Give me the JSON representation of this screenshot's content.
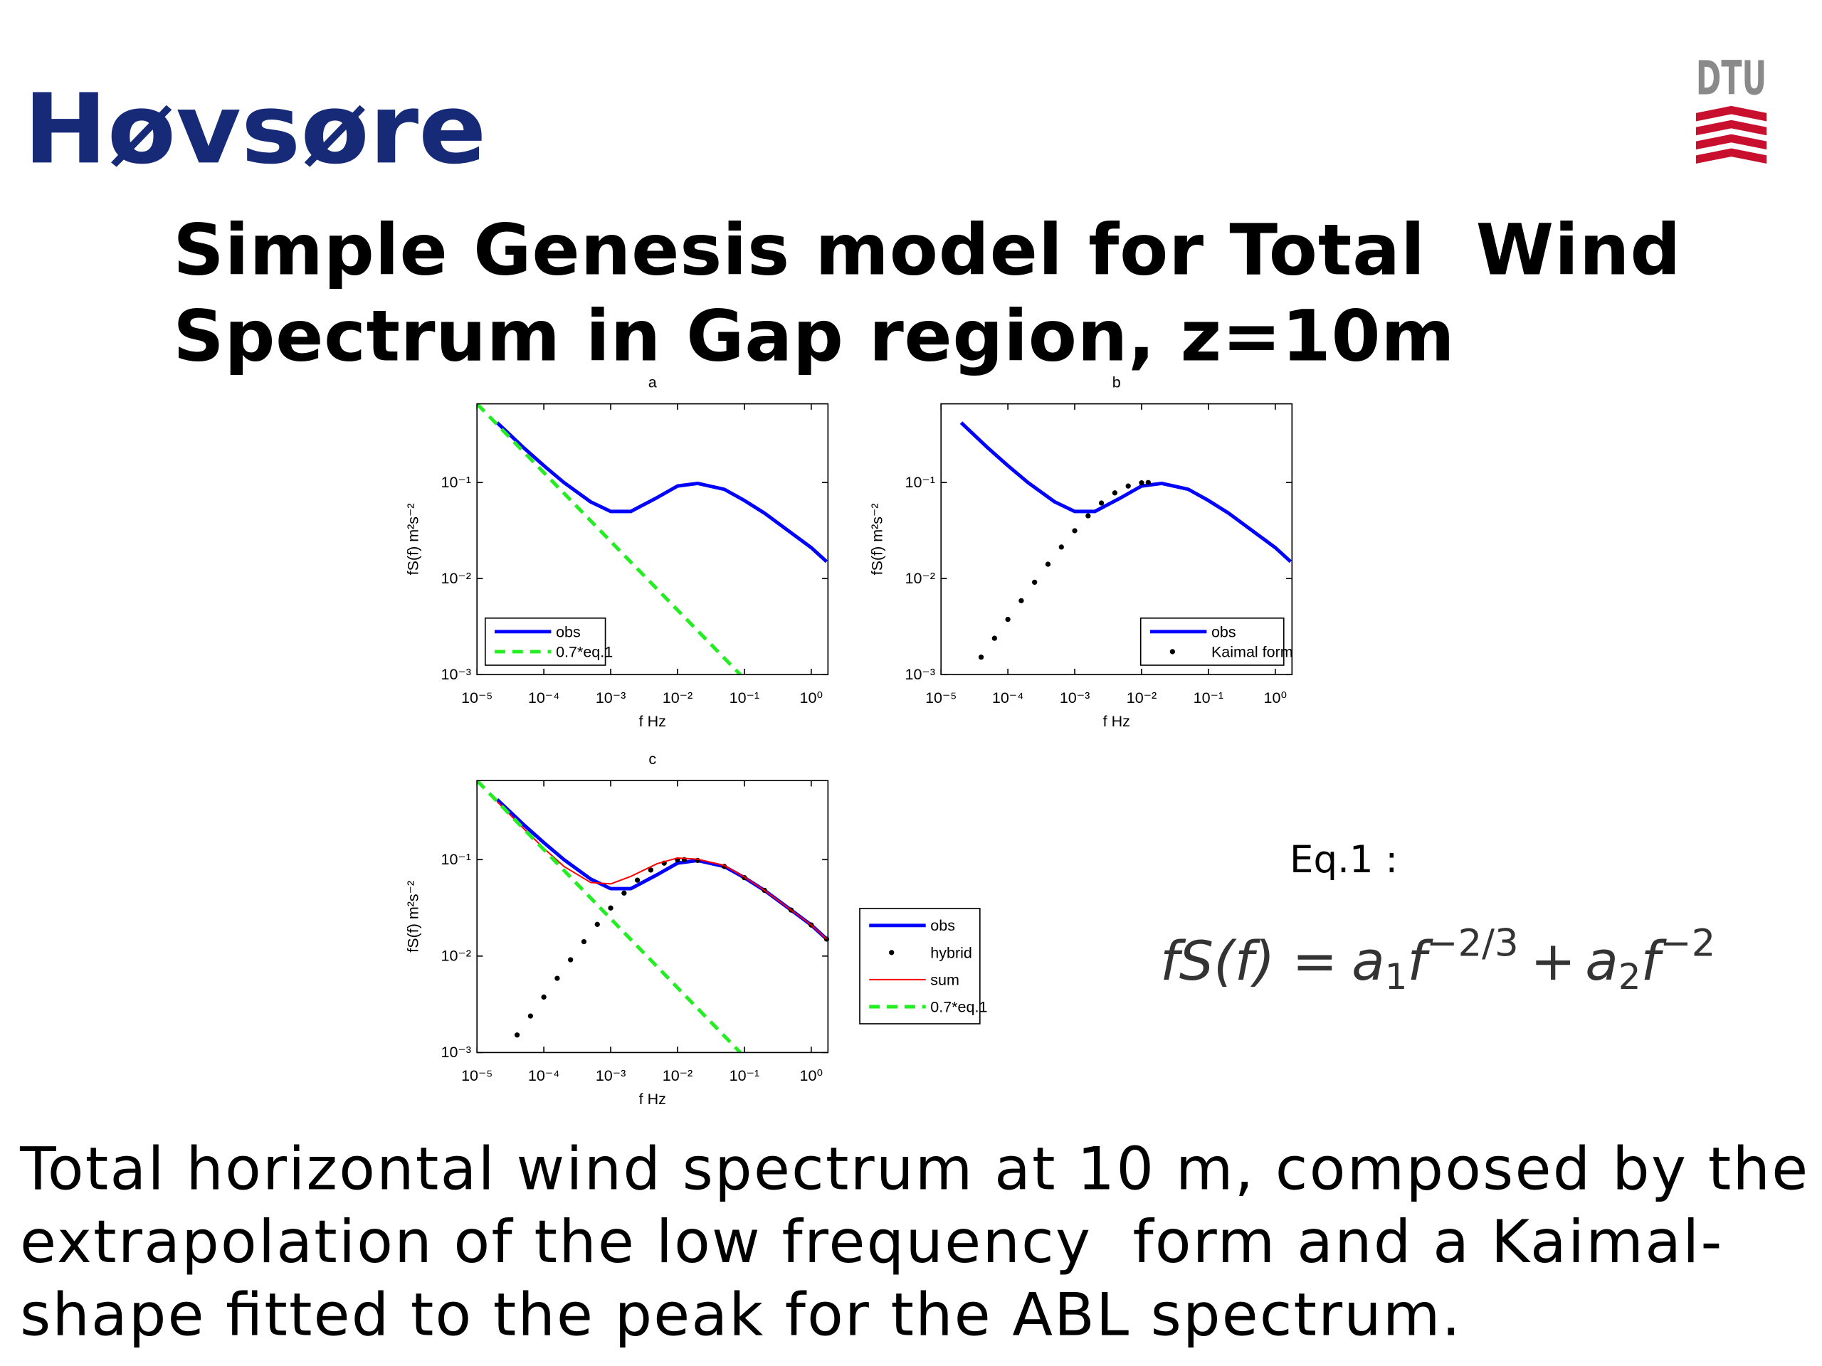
{
  "header": "Høvsøre",
  "logo": "DTU",
  "title": [
    "Simple Genesis model for Total  Wind",
    "Spectrum in Gap region, z=10m"
  ],
  "equation_label": "Eq.1 :",
  "equation": {
    "lhs": "fS(f) =",
    "terms": [
      {
        "coef": "a",
        "sub": "1",
        "var": "f",
        "exp": "−2/3"
      },
      {
        "op": "+",
        "coef": "a",
        "sub": "2",
        "var": "f",
        "exp": "−2"
      }
    ]
  },
  "caption": [
    "Total horizontal wind spectrum at 10 m, composed by the",
    "extrapolation of the low frequency  form and a Kaimal-",
    "shape fitted to the peak for the ABL spectrum."
  ],
  "chart_data": [
    {
      "type": "line",
      "title": "a",
      "xlabel": "f Hz",
      "ylabel": "fS(f) m²s⁻²",
      "xscale": "log",
      "yscale": "log",
      "xlim": [
        1e-05,
        1.78
      ],
      "ylim": [
        0.001,
        0.66
      ],
      "xticks": [
        {
          "value": 1e-05,
          "label": "10⁻⁵"
        },
        {
          "value": 0.0001,
          "label": "10⁻⁴"
        },
        {
          "value": 0.001,
          "label": "10⁻³"
        },
        {
          "value": 0.01,
          "label": "10⁻²"
        },
        {
          "value": 0.1,
          "label": "10⁻¹"
        },
        {
          "value": 1,
          "label": "10⁰"
        }
      ],
      "yticks": [
        {
          "value": 0.001,
          "label": "10⁻³"
        },
        {
          "value": 0.01,
          "label": "10⁻²"
        },
        {
          "value": 0.1,
          "label": "10⁻¹"
        }
      ],
      "legend": "lower left",
      "series": [
        {
          "name": "obs",
          "color": "#0000ff",
          "style": "solid",
          "x": [
            2e-05,
            5e-05,
            0.0001,
            0.0002,
            0.0005,
            0.001,
            0.002,
            0.005,
            0.01,
            0.02,
            0.05,
            0.1,
            0.2,
            0.5,
            1,
            1.7
          ],
          "values": [
            0.42,
            0.23,
            0.15,
            0.1,
            0.063,
            0.05,
            0.05,
            0.07,
            0.092,
            0.098,
            0.085,
            0.065,
            0.048,
            0.03,
            0.021,
            0.015
          ]
        },
        {
          "name": "0.7*eq.1",
          "color": "#22ee22",
          "style": "dashed",
          "x": [
            1e-05,
            0.0001,
            0.001,
            0.01,
            0.087
          ],
          "values": [
            0.66,
            0.127,
            0.0244,
            0.0047,
            0.001
          ]
        }
      ]
    },
    {
      "type": "line",
      "title": "b",
      "xlabel": "f Hz",
      "ylabel": "fS(f) m²s⁻²",
      "xscale": "log",
      "yscale": "log",
      "xlim": [
        1e-05,
        1.78
      ],
      "ylim": [
        0.001,
        0.66
      ],
      "xticks": [
        {
          "value": 1e-05,
          "label": "10⁻⁵"
        },
        {
          "value": 0.0001,
          "label": "10⁻⁴"
        },
        {
          "value": 0.001,
          "label": "10⁻³"
        },
        {
          "value": 0.01,
          "label": "10⁻²"
        },
        {
          "value": 0.1,
          "label": "10⁻¹"
        },
        {
          "value": 1,
          "label": "10⁰"
        }
      ],
      "yticks": [
        {
          "value": 0.001,
          "label": "10⁻³"
        },
        {
          "value": 0.01,
          "label": "10⁻²"
        },
        {
          "value": 0.1,
          "label": "10⁻¹"
        }
      ],
      "legend": "lower right",
      "series": [
        {
          "name": "obs",
          "color": "#0000ff",
          "style": "solid",
          "x": [
            2e-05,
            5e-05,
            0.0001,
            0.0002,
            0.0005,
            0.001,
            0.002,
            0.005,
            0.01,
            0.02,
            0.05,
            0.1,
            0.2,
            0.5,
            1,
            1.7
          ],
          "values": [
            0.42,
            0.23,
            0.15,
            0.1,
            0.063,
            0.05,
            0.05,
            0.07,
            0.092,
            0.098,
            0.085,
            0.065,
            0.048,
            0.03,
            0.021,
            0.015
          ]
        },
        {
          "name": "Kaimal form",
          "color": "#000000",
          "style": "dots",
          "x": [
            3.98e-05,
            6.31e-05,
            0.0001,
            0.0001585,
            0.000251,
            0.000398,
            0.000631,
            0.001,
            0.001585,
            0.00251,
            0.00398,
            0.00631,
            0.01,
            0.0126
          ],
          "values": [
            0.00152,
            0.00239,
            0.00376,
            0.00588,
            0.00916,
            0.0141,
            0.0213,
            0.0315,
            0.045,
            0.0612,
            0.078,
            0.0919,
            0.0993,
            0.1
          ]
        }
      ]
    },
    {
      "type": "line",
      "title": "c",
      "xlabel": "f Hz",
      "ylabel": "fS(f) m²s⁻²",
      "xscale": "log",
      "yscale": "log",
      "xlim": [
        1e-05,
        1.78
      ],
      "ylim": [
        0.001,
        0.66
      ],
      "xticks": [
        {
          "value": 1e-05,
          "label": "10⁻⁵"
        },
        {
          "value": 0.0001,
          "label": "10⁻⁴"
        },
        {
          "value": 0.001,
          "label": "10⁻³"
        },
        {
          "value": 0.01,
          "label": "10⁻²"
        },
        {
          "value": 0.1,
          "label": "10⁻¹"
        },
        {
          "value": 1,
          "label": "10⁰"
        }
      ],
      "yticks": [
        {
          "value": 0.001,
          "label": "10⁻³"
        },
        {
          "value": 0.01,
          "label": "10⁻²"
        },
        {
          "value": 0.1,
          "label": "10⁻¹"
        }
      ],
      "legend": "outside right",
      "series": [
        {
          "name": "obs",
          "color": "#0000ff",
          "style": "solid",
          "x": [
            2e-05,
            5e-05,
            0.0001,
            0.0002,
            0.0005,
            0.001,
            0.002,
            0.005,
            0.01,
            0.02,
            0.05,
            0.1,
            0.2,
            0.5,
            1,
            1.7
          ],
          "values": [
            0.42,
            0.23,
            0.15,
            0.1,
            0.063,
            0.05,
            0.05,
            0.07,
            0.092,
            0.098,
            0.085,
            0.065,
            0.048,
            0.03,
            0.021,
            0.015
          ]
        },
        {
          "name": "hybrid",
          "color": "#000000",
          "style": "dots",
          "x": [
            3.98e-05,
            6.31e-05,
            0.0001,
            0.0001585,
            0.000251,
            0.000398,
            0.000631,
            0.001,
            0.001585,
            0.00251,
            0.00398,
            0.00631,
            0.01,
            0.0126,
            0.02,
            0.05,
            0.1,
            0.2,
            0.5,
            1,
            1.7
          ],
          "values": [
            0.00152,
            0.00239,
            0.00376,
            0.00588,
            0.00916,
            0.0141,
            0.0213,
            0.0315,
            0.045,
            0.0612,
            0.078,
            0.0919,
            0.0993,
            0.1,
            0.098,
            0.085,
            0.065,
            0.048,
            0.03,
            0.021,
            0.015
          ]
        },
        {
          "name": "sum",
          "color": "#ff0000",
          "style": "thin",
          "x": [
            2e-05,
            5e-05,
            0.0001,
            0.0002,
            0.0005,
            0.001,
            0.002,
            0.005,
            0.01,
            0.02,
            0.05,
            0.1,
            0.2,
            0.5,
            1,
            1.7
          ],
          "values": [
            0.4,
            0.21,
            0.131,
            0.085,
            0.058,
            0.056,
            0.067,
            0.091,
            0.104,
            0.101,
            0.087,
            0.066,
            0.048,
            0.03,
            0.021,
            0.015
          ]
        },
        {
          "name": "0.7*eq.1",
          "color": "#22ee22",
          "style": "dashed",
          "x": [
            1e-05,
            0.0001,
            0.001,
            0.01,
            0.087
          ],
          "values": [
            0.66,
            0.127,
            0.0244,
            0.0047,
            0.001
          ]
        }
      ]
    }
  ]
}
